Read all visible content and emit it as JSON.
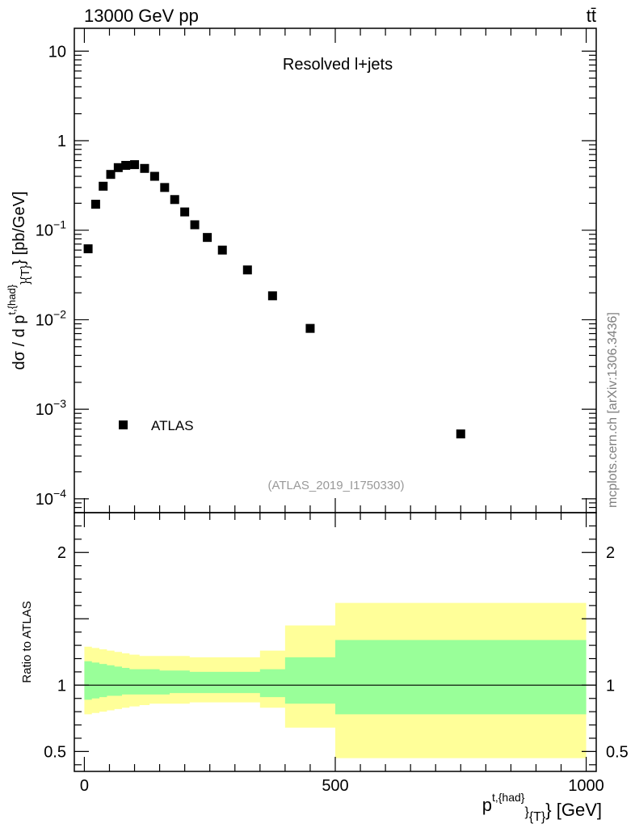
{
  "header": {
    "energy_label": "13000 GeV pp",
    "process_label": "tt̄"
  },
  "side_label": "mcplots.cern.ch [arXiv:1306.3436]",
  "chart_data": [
    {
      "type": "scatter",
      "panel": "main",
      "title": "Resolved l+jets",
      "analysis_label": "(ATLAS_2019_I1750330)",
      "xlabel": "p t,{had} {T} [GeV]",
      "ylabel": "dσ / d p t,{had} {T} [pb/GeV]",
      "y_scale": "log",
      "xlim": [
        -20,
        1020
      ],
      "ylim": [
        7e-05,
        18
      ],
      "yticks": [
        {
          "value": 0.0001,
          "label": "10",
          "exp": "−4"
        },
        {
          "value": 0.001,
          "label": "10",
          "exp": "−3"
        },
        {
          "value": 0.01,
          "label": "10",
          "exp": "−2"
        },
        {
          "value": 0.1,
          "label": "10",
          "exp": "−1"
        },
        {
          "value": 1,
          "label": "1",
          "exp": ""
        },
        {
          "value": 10,
          "label": "10",
          "exp": ""
        }
      ],
      "legend": {
        "entries": [
          "ATLAS"
        ],
        "placement": "bottom-left"
      },
      "series": [
        {
          "name": "ATLAS",
          "marker": "square",
          "x": [
            7.5,
            22.5,
            37.5,
            52.5,
            67.5,
            82.5,
            100,
            120,
            140,
            160,
            180,
            200,
            220,
            245,
            275,
            325,
            375,
            450,
            750
          ],
          "values": [
            0.062,
            0.195,
            0.31,
            0.42,
            0.5,
            0.53,
            0.54,
            0.49,
            0.4,
            0.3,
            0.22,
            0.16,
            0.115,
            0.083,
            0.06,
            0.036,
            0.0185,
            0.008,
            0.00053
          ]
        }
      ]
    },
    {
      "type": "area",
      "panel": "ratio",
      "ylabel": "Ratio to ATLAS",
      "xlabel": "p t,{had} {T} [GeV]",
      "xlim": [
        -20,
        1020
      ],
      "ylim": [
        0.35,
        2.3
      ],
      "yticks": [
        {
          "value": 0.5,
          "label": "0.5"
        },
        {
          "value": 1,
          "label": "1"
        },
        {
          "value": 2,
          "label": "2"
        }
      ],
      "xticks": [
        {
          "value": 0,
          "label": "0"
        },
        {
          "value": 500,
          "label": "500"
        },
        {
          "value": 1000,
          "label": "1000"
        }
      ],
      "reference_line": 1,
      "bin_edges": [
        0,
        15,
        30,
        45,
        60,
        75,
        90,
        110,
        130,
        150,
        170,
        190,
        210,
        230,
        260,
        290,
        350,
        400,
        500,
        1000
      ],
      "inner_band": {
        "name": "stat uncertainty",
        "color": "#99ff99",
        "upper": [
          1.18,
          1.17,
          1.16,
          1.15,
          1.14,
          1.13,
          1.12,
          1.12,
          1.12,
          1.11,
          1.11,
          1.11,
          1.1,
          1.1,
          1.1,
          1.1,
          1.12,
          1.21,
          1.34
        ],
        "lower": [
          0.89,
          0.9,
          0.91,
          0.92,
          0.92,
          0.93,
          0.93,
          0.93,
          0.93,
          0.93,
          0.94,
          0.94,
          0.94,
          0.94,
          0.94,
          0.94,
          0.91,
          0.86,
          0.78
        ]
      },
      "outer_band": {
        "name": "total uncertainty",
        "color": "#ffff99",
        "upper": [
          1.29,
          1.28,
          1.27,
          1.26,
          1.25,
          1.24,
          1.23,
          1.22,
          1.22,
          1.22,
          1.22,
          1.22,
          1.21,
          1.21,
          1.21,
          1.21,
          1.26,
          1.45,
          1.62
        ],
        "lower": [
          0.78,
          0.79,
          0.8,
          0.81,
          0.82,
          0.83,
          0.84,
          0.85,
          0.86,
          0.86,
          0.86,
          0.86,
          0.87,
          0.87,
          0.87,
          0.87,
          0.83,
          0.68,
          0.45
        ]
      }
    }
  ]
}
